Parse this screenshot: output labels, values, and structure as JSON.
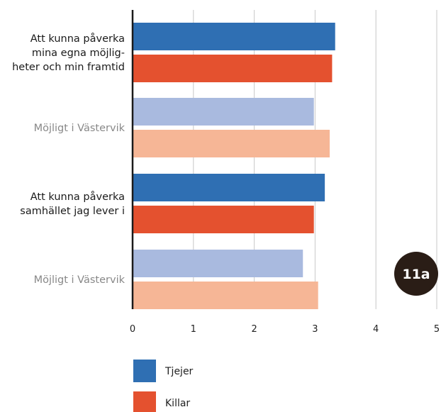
{
  "chart_data": {
    "type": "bar",
    "orientation": "horizontal",
    "xlim": [
      0,
      5
    ],
    "xticks": [
      "0",
      "1",
      "2",
      "3",
      "4",
      "5"
    ],
    "grid": true,
    "badge": "11a",
    "legend_position": "bottom-left",
    "groups": [
      {
        "label": [
          "Att kunna påverka",
          "mina egna möjlig-",
          "heter och min framtid"
        ],
        "label_color": "#1a1a1a",
        "bars": [
          {
            "series": "Tjejer",
            "value": 3.33,
            "color": "#2f6fb3"
          },
          {
            "series": "Killar",
            "value": 3.28,
            "color": "#e4512f"
          }
        ]
      },
      {
        "label": [
          "Möjligt i Västervik"
        ],
        "label_color": "#888888",
        "bars": [
          {
            "series": "Tjejer (Möjligt i Västervik)",
            "value": 2.98,
            "color": "#a9badf"
          },
          {
            "series": "Killar (Möjligt i Västervik)",
            "value": 3.24,
            "color": "#f6b696"
          }
        ]
      },
      {
        "label": [
          "Att kunna påverka",
          "samhället jag lever i"
        ],
        "label_color": "#1a1a1a",
        "bars": [
          {
            "series": "Tjejer",
            "value": 3.16,
            "color": "#2f6fb3"
          },
          {
            "series": "Killar",
            "value": 2.98,
            "color": "#e4512f"
          }
        ]
      },
      {
        "label": [
          "Möjligt i Västervik"
        ],
        "label_color": "#888888",
        "bars": [
          {
            "series": "Tjejer (Möjligt i Västervik)",
            "value": 2.8,
            "color": "#a9badf"
          },
          {
            "series": "Killar (Möjligt i Västervik)",
            "value": 3.05,
            "color": "#f6b696"
          }
        ]
      }
    ],
    "legend": [
      {
        "name": "Tjejer",
        "color": "#2f6fb3"
      },
      {
        "name": "Killar",
        "color": "#e4512f"
      }
    ]
  },
  "colors": {
    "axis": "#1a1a1a",
    "grid": "#c8c8c8",
    "badge_bg": "#2a1d16"
  }
}
